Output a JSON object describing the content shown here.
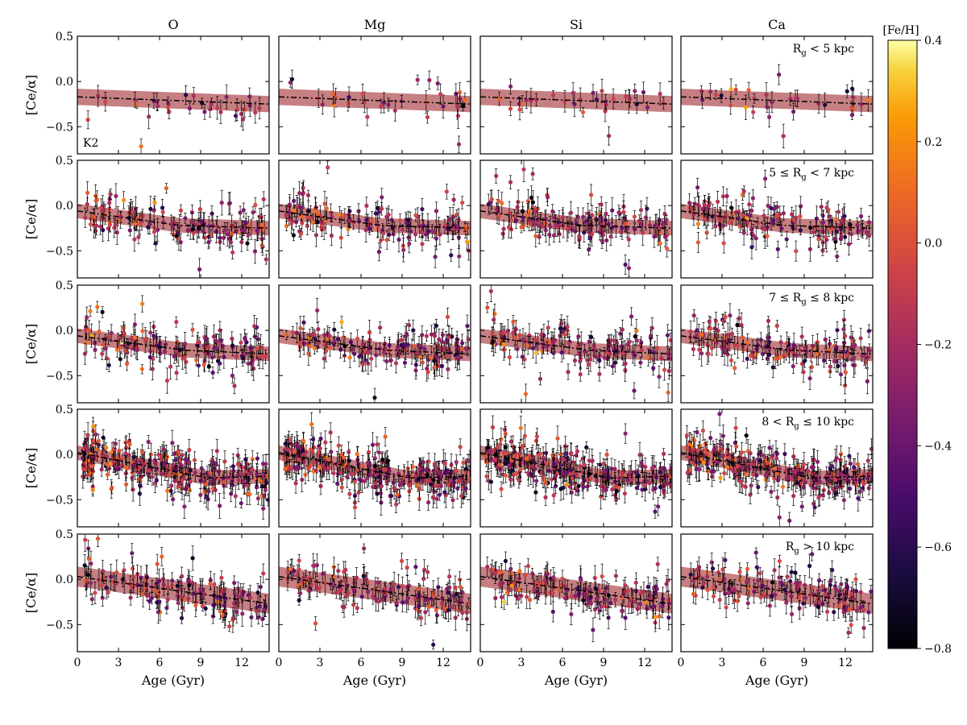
{
  "chart_data": {
    "type": "scatter",
    "layout": "5 rows x 4 columns grid of scatter panels with error bars, a fitted dash-dot trend line and shaded band, color-coded by [Fe/H]",
    "columns": [
      "O",
      "Mg",
      "Si",
      "Ca"
    ],
    "rows": [
      {
        "label": "R g < 5 kpc",
        "label_parts": [
          "R",
          "g",
          " < 5 kpc"
        ],
        "sample_size": "small",
        "fit_start": -0.17,
        "fit_end": -0.25,
        "band_halfwidth": 0.09,
        "inset_label": "K2"
      },
      {
        "label": "5 ≤ R g < 7 kpc",
        "label_parts": [
          "5 ≤ R",
          "g",
          " < 7 kpc"
        ],
        "sample_size": "medium",
        "fit_start": -0.06,
        "fit_knee_age": 7.5,
        "fit_knee": -0.22,
        "fit_end": -0.25,
        "band_halfwidth": 0.08
      },
      {
        "label": "7 ≤ R g ≤ 8 kpc",
        "label_parts": [
          "7 ≤ R",
          "g",
          " ≤ 8 kpc"
        ],
        "sample_size": "medium",
        "fit_start": -0.06,
        "fit_knee_age": 8,
        "fit_knee": -0.22,
        "fit_end": -0.26,
        "band_halfwidth": 0.08
      },
      {
        "label": "8 < R g ≤ 10 kpc",
        "label_parts": [
          "8 < R",
          "g",
          " ≤ 10 kpc"
        ],
        "sample_size": "large",
        "fit_start": 0.02,
        "fit_knee_age": 9.5,
        "fit_knee": -0.26,
        "fit_end": -0.24,
        "band_halfwidth": 0.08
      },
      {
        "label": "R g > 10 kpc",
        "label_parts": [
          "R",
          "g",
          " > 10 kpc"
        ],
        "sample_size": "medium",
        "fit_start": 0.03,
        "fit_end": -0.27,
        "band_halfwidth": 0.11
      }
    ],
    "xlabel": "Age (Gyr)",
    "ylabel": "[Ce/α]",
    "xlim": [
      0,
      14
    ],
    "ylim": [
      -0.8,
      0.5
    ],
    "xticks": [
      0,
      3,
      6,
      9,
      12
    ],
    "yticks": [
      0.5,
      0.0,
      -0.5
    ],
    "ytick_labels": [
      "0.5",
      "0.0",
      "−0.5"
    ],
    "colorbar": {
      "label": "[Fe/H]",
      "range": [
        -0.8,
        0.4
      ],
      "ticks": [
        0.4,
        0.2,
        0.0,
        -0.2,
        -0.4,
        -0.6,
        -0.8
      ],
      "tick_labels": [
        "0.4",
        "0.2",
        "0.0",
        "−0.2",
        "−0.4",
        "−0.6",
        "−0.8"
      ],
      "colormap": "inferno"
    },
    "fit_line_color": "#000000",
    "band_color": "#a83a3f"
  }
}
